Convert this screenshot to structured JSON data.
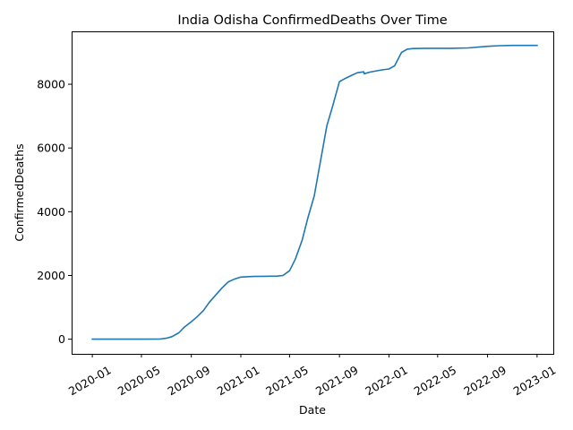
{
  "chart_data": {
    "type": "line",
    "title": "India Odisha ConfirmedDeaths Over Time",
    "xlabel": "Date",
    "ylabel": "ConfirmedDeaths",
    "x_ticks": [
      "2020-01",
      "2020-05",
      "2020-09",
      "2021-01",
      "2021-05",
      "2021-09",
      "2022-01",
      "2022-05",
      "2022-09",
      "2023-01"
    ],
    "y_ticks": [
      0,
      2000,
      4000,
      6000,
      8000
    ],
    "xlim": [
      "2019-11-11",
      "2023-02-10"
    ],
    "ylim": [
      -460,
      9660
    ],
    "grid": false,
    "colors": {
      "series": "#1f77b4"
    },
    "series": [
      {
        "x": [
          "2020-01-01",
          "2020-03-01",
          "2020-05-01",
          "2020-06-15",
          "2020-07-01",
          "2020-07-15",
          "2020-08-01",
          "2020-08-15",
          "2020-09-01",
          "2020-09-15",
          "2020-10-01",
          "2020-10-15",
          "2020-11-01",
          "2020-11-15",
          "2020-12-01",
          "2020-12-15",
          "2021-01-01",
          "2021-02-01",
          "2021-03-01",
          "2021-04-01",
          "2021-04-15",
          "2021-05-01",
          "2021-05-15",
          "2021-06-01",
          "2021-06-15",
          "2021-07-01",
          "2021-07-15",
          "2021-08-01",
          "2021-08-15",
          "2021-09-01",
          "2021-09-15",
          "2021-10-01",
          "2021-10-15",
          "2021-10-31",
          "2021-11-01",
          "2021-11-15",
          "2021-12-01",
          "2021-12-15",
          "2022-01-01",
          "2022-01-15",
          "2022-02-01",
          "2022-02-15",
          "2022-03-01",
          "2022-04-01",
          "2022-05-01",
          "2022-06-01",
          "2022-07-15",
          "2022-09-01",
          "2022-10-01",
          "2022-11-01",
          "2022-12-01",
          "2023-01-01"
        ],
        "y": [
          0,
          0,
          0,
          5,
          30,
          80,
          200,
          380,
          550,
          700,
          900,
          1150,
          1400,
          1600,
          1800,
          1880,
          1950,
          1970,
          1975,
          1980,
          2000,
          2150,
          2500,
          3100,
          3800,
          4500,
          5500,
          6700,
          7300,
          8080,
          8180,
          8280,
          8360,
          8390,
          8330,
          8380,
          8420,
          8450,
          8480,
          8580,
          9000,
          9100,
          9120,
          9130,
          9130,
          9130,
          9140,
          9190,
          9210,
          9220,
          9220,
          9220
        ]
      }
    ]
  }
}
